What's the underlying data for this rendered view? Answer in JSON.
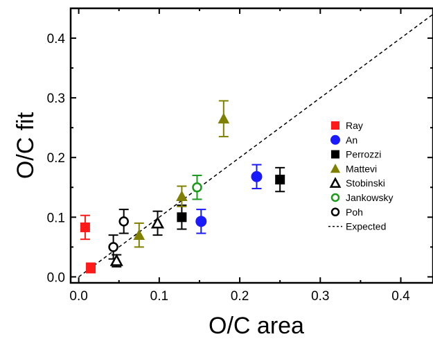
{
  "chart_data": {
    "type": "scatter",
    "xlabel": "O/C area",
    "ylabel": "O/C fit",
    "xlim": [
      -0.01,
      0.44
    ],
    "ylim": [
      -0.01,
      0.45
    ],
    "xticks": [
      "0.0",
      "0.1",
      "0.2",
      "0.3",
      "0.4"
    ],
    "yticks": [
      "0.0",
      "0.1",
      "0.2",
      "0.3",
      "0.4"
    ],
    "grid": false,
    "legend_position": "right",
    "series": [
      {
        "name": "Ray",
        "marker": "square",
        "filled": true,
        "color": "#ff1a1a",
        "points": [
          {
            "x": 0.008,
            "y": 0.083,
            "err": 0.02
          },
          {
            "x": 0.015,
            "y": 0.015,
            "err": 0.008
          }
        ]
      },
      {
        "name": "An",
        "marker": "circle",
        "filled": true,
        "color": "#1a1aff",
        "points": [
          {
            "x": 0.152,
            "y": 0.093,
            "err": 0.02
          },
          {
            "x": 0.221,
            "y": 0.168,
            "err": 0.02
          }
        ]
      },
      {
        "name": "Perrozzi",
        "marker": "square",
        "filled": true,
        "color": "#000000",
        "points": [
          {
            "x": 0.128,
            "y": 0.1,
            "err": 0.02
          },
          {
            "x": 0.25,
            "y": 0.163,
            "err": 0.02
          }
        ]
      },
      {
        "name": "Mattevi",
        "marker": "triangle",
        "filled": true,
        "color": "#808000",
        "points": [
          {
            "x": 0.075,
            "y": 0.07,
            "err": 0.02
          },
          {
            "x": 0.128,
            "y": 0.135,
            "err": 0.017
          },
          {
            "x": 0.18,
            "y": 0.265,
            "err": 0.03
          }
        ]
      },
      {
        "name": "Stobinski",
        "marker": "triangle",
        "filled": false,
        "color": "#000000",
        "points": [
          {
            "x": 0.047,
            "y": 0.027,
            "err": 0.01
          },
          {
            "x": 0.098,
            "y": 0.09,
            "err": 0.02
          }
        ]
      },
      {
        "name": "Jankowsky",
        "marker": "circle",
        "filled": false,
        "color": "#1a9a1a",
        "points": [
          {
            "x": 0.147,
            "y": 0.15,
            "err": 0.02
          }
        ]
      },
      {
        "name": "Poh",
        "marker": "circle",
        "filled": false,
        "color": "#000000",
        "points": [
          {
            "x": 0.043,
            "y": 0.05,
            "err": 0.02
          },
          {
            "x": 0.056,
            "y": 0.093,
            "err": 0.02
          }
        ]
      }
    ],
    "reference_line": {
      "name": "Expected",
      "style": "dashed",
      "color": "#000000",
      "x": [
        0,
        0.44
      ],
      "y": [
        0,
        0.44
      ]
    }
  }
}
